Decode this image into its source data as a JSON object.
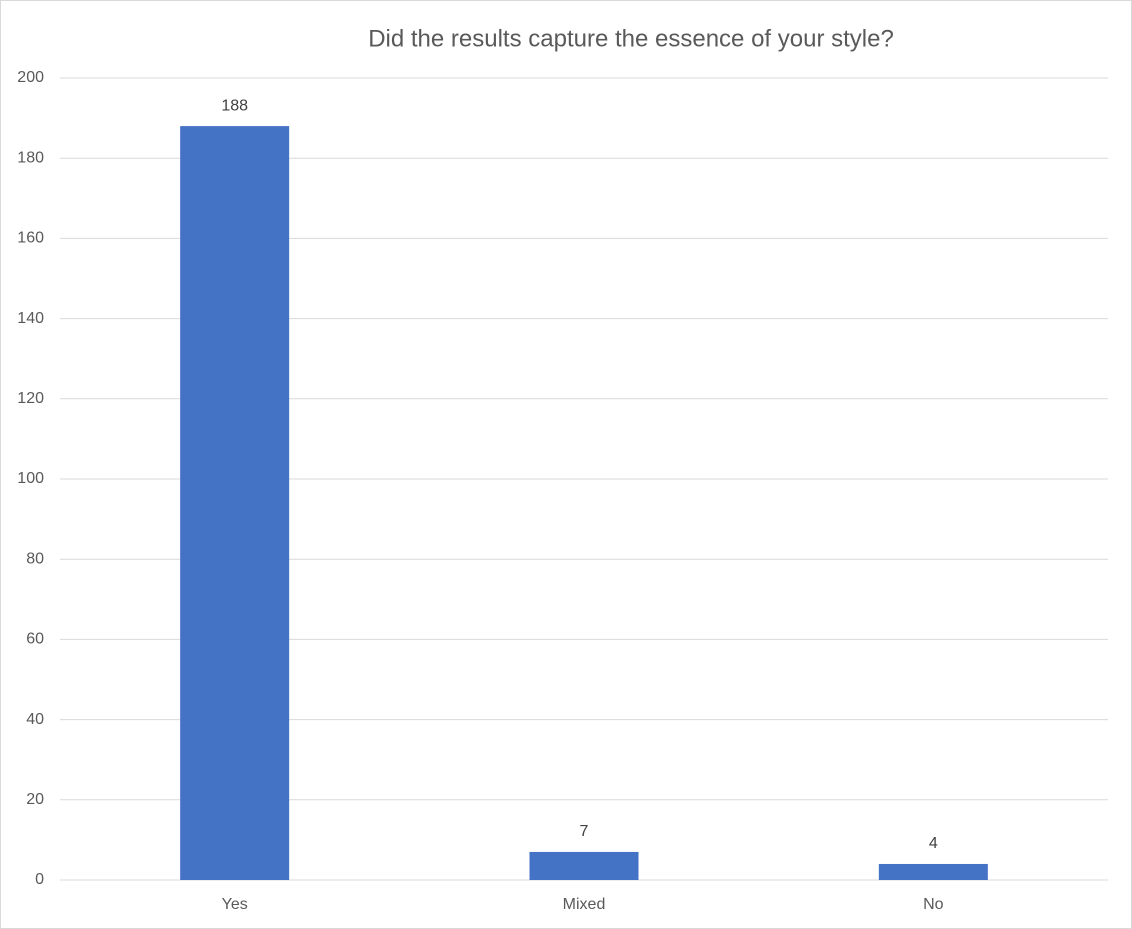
{
  "chart_data": {
    "type": "bar",
    "title": "Did the results capture the essence of your style?",
    "categories": [
      "Yes",
      "Mixed",
      "No"
    ],
    "values": [
      188,
      7,
      4
    ],
    "color": "#4472c4",
    "ylim": [
      0,
      200
    ],
    "yticks": [
      0,
      20,
      40,
      60,
      80,
      100,
      120,
      140,
      160,
      180,
      200
    ],
    "grid": true
  }
}
